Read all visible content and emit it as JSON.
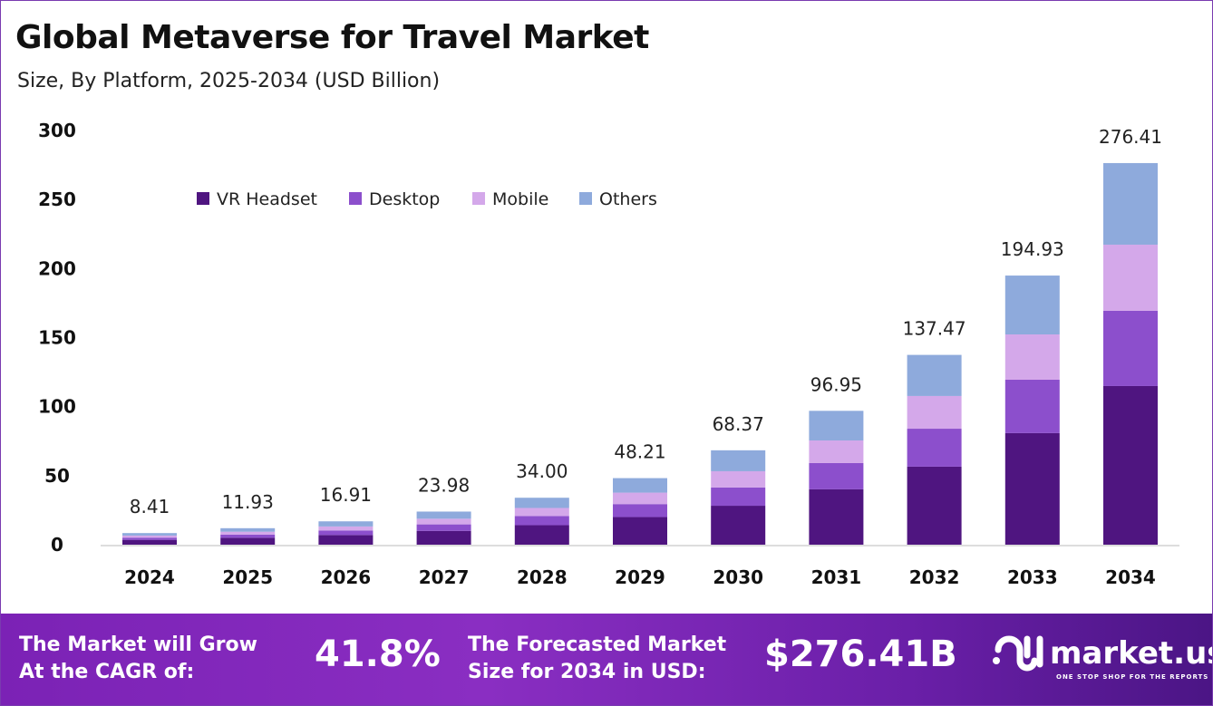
{
  "title": "Global Metaverse for Travel Market",
  "subtitle": "Size, By Platform, 2025-2034 (USD Billion)",
  "chart_data": {
    "type": "bar",
    "stacked": true,
    "categories": [
      "2024",
      "2025",
      "2026",
      "2027",
      "2028",
      "2029",
      "2030",
      "2031",
      "2032",
      "2033",
      "2034"
    ],
    "totals": [
      "8.41",
      "11.93",
      "16.91",
      "23.98",
      "34.00",
      "48.21",
      "68.37",
      "96.95",
      "137.47",
      "194.93",
      "276.41"
    ],
    "series": [
      {
        "name": "VR Headset",
        "color": "#4f1580",
        "values": [
          3.5,
          5.0,
          7.0,
          10.0,
          14.1,
          20.0,
          28.2,
          40.1,
          56.5,
          80.8,
          114.9
        ]
      },
      {
        "name": "Desktop",
        "color": "#8c4fcc",
        "values": [
          1.6,
          2.3,
          3.3,
          4.7,
          6.6,
          9.4,
          13.2,
          19.0,
          27.5,
          38.7,
          54.5
        ]
      },
      {
        "name": "Mobile",
        "color": "#d4a8ea",
        "values": [
          1.5,
          2.1,
          2.9,
          4.1,
          5.9,
          8.3,
          11.8,
          16.4,
          23.7,
          32.8,
          47.9
        ]
      },
      {
        "name": "Others",
        "color": "#8eaadc",
        "values": [
          1.81,
          2.53,
          3.71,
          5.18,
          7.4,
          10.51,
          15.17,
          21.45,
          29.77,
          42.63,
          59.11
        ]
      }
    ],
    "yticks": [
      "0",
      "50",
      "100",
      "150",
      "200",
      "250",
      "300"
    ],
    "ylim": [
      0,
      300
    ],
    "legend": "top-left",
    "grid": false
  },
  "footer": {
    "cagr_label_1": "The Market will Grow",
    "cagr_label_2": "At the CAGR of:",
    "cagr_value": "41.8%",
    "forecast_label_1": "The Forecasted Market",
    "forecast_label_2": "Size for 2034 in USD:",
    "forecast_value": "$276.41B",
    "logo_text": "market.us",
    "logo_tagline": "ONE STOP SHOP FOR THE REPORTS"
  }
}
